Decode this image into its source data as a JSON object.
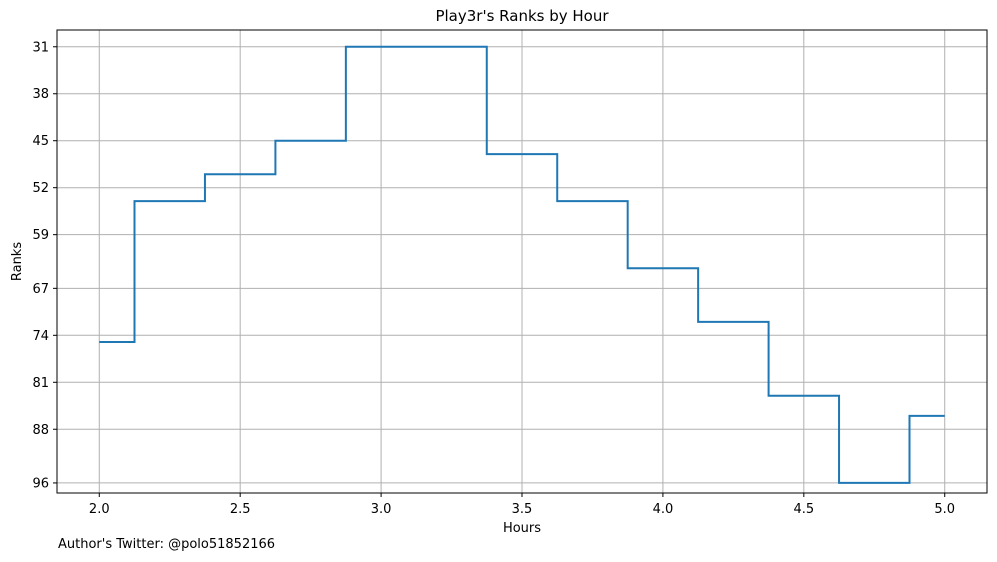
{
  "footnote": "Author's Twitter: @polo51852166",
  "chart_data": {
    "type": "line",
    "step": "mid",
    "title": "Play3r's Ranks by Hour",
    "xlabel": "Hours",
    "ylabel": "Ranks",
    "xlim": [
      1.85,
      5.15
    ],
    "ylim": [
      97.5,
      28.5
    ],
    "y_inverted": true,
    "grid": true,
    "x_ticks": [
      2.0,
      2.5,
      3.0,
      3.5,
      4.0,
      4.5,
      5.0
    ],
    "x_tick_labels": [
      "2.0",
      "2.5",
      "3.0",
      "3.5",
      "4.0",
      "4.5",
      "5.0"
    ],
    "y_ticks": [
      31,
      38,
      45,
      52,
      59,
      67,
      74,
      81,
      88,
      96
    ],
    "y_tick_labels": [
      "31",
      "38",
      "45",
      "52",
      "59",
      "67",
      "74",
      "81",
      "88",
      "96"
    ],
    "line_color": "#1f77b4",
    "series": [
      {
        "x": [
          2.0,
          2.25,
          2.5,
          2.75,
          3.0,
          3.25,
          3.5,
          3.75,
          4.0,
          4.25,
          4.5,
          4.75,
          5.0
        ],
        "y": [
          75,
          54,
          50,
          45,
          31,
          31,
          47,
          54,
          64,
          72,
          83,
          96,
          86
        ]
      }
    ]
  }
}
